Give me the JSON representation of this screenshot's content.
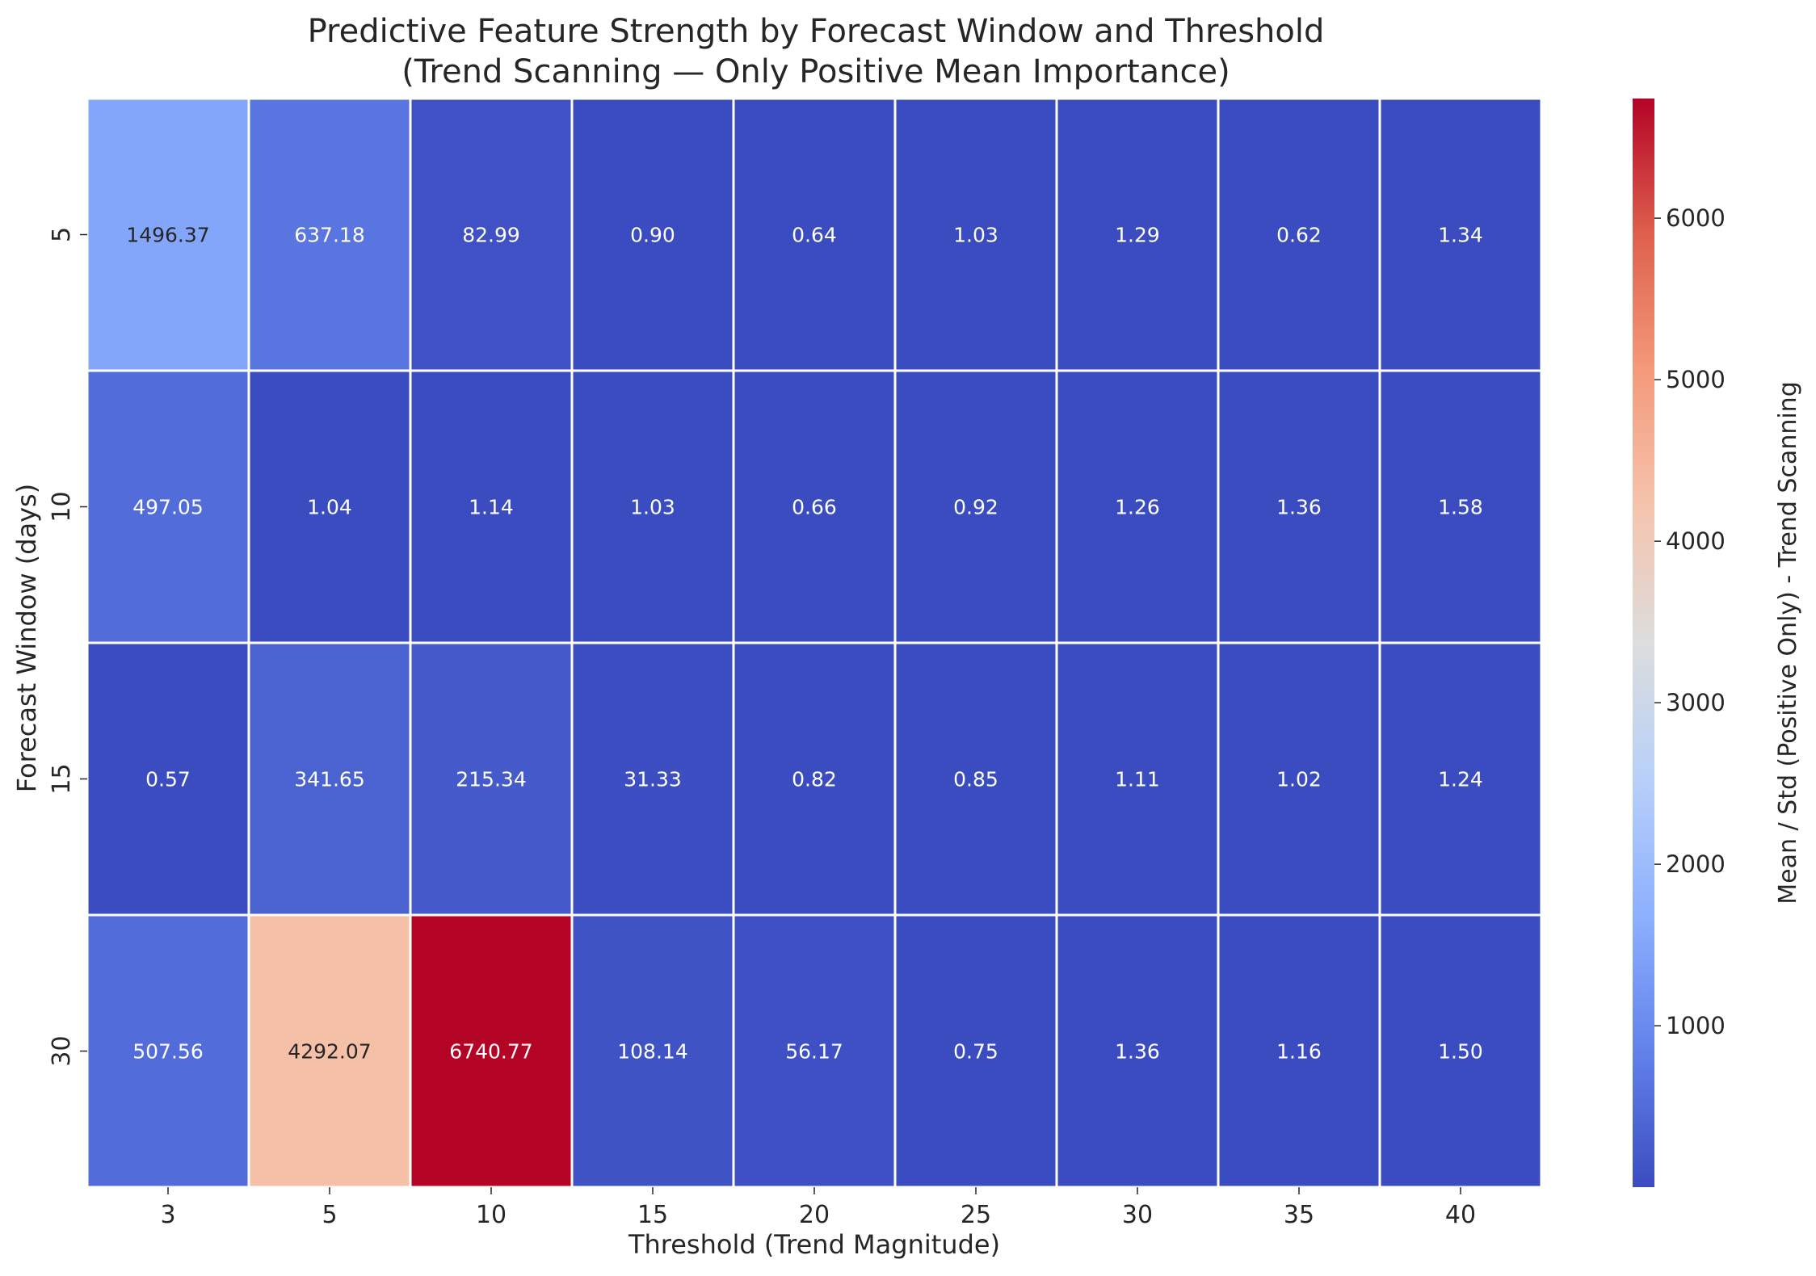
{
  "chart_data": {
    "type": "heatmap",
    "title": "Predictive Feature Strength by Forecast Window and Threshold",
    "subtitle": "(Trend Scanning — Only Positive Mean Importance)",
    "xlabel": "Threshold (Trend Magnitude)",
    "ylabel": "Forecast Window (days)",
    "colorbar_label": "Mean / Std (Positive Only) - Trend Scanning",
    "colormap": "coolwarm",
    "colorbar_range": [
      0.57,
      6740.77
    ],
    "colorbar_ticks": [
      1000,
      2000,
      3000,
      4000,
      5000,
      6000
    ],
    "x_categories": [
      "3",
      "5",
      "10",
      "15",
      "20",
      "25",
      "30",
      "35",
      "40"
    ],
    "y_categories": [
      "5",
      "10",
      "15",
      "30"
    ],
    "values": [
      [
        1496.37,
        637.18,
        82.99,
        0.9,
        0.64,
        1.03,
        1.29,
        0.62,
        1.34
      ],
      [
        497.05,
        1.04,
        1.14,
        1.03,
        0.66,
        0.92,
        1.26,
        1.36,
        1.58
      ],
      [
        0.57,
        341.65,
        215.34,
        31.33,
        0.82,
        0.85,
        1.11,
        1.02,
        1.24
      ],
      [
        507.56,
        4292.07,
        6740.77,
        108.14,
        56.17,
        0.75,
        1.36,
        1.16,
        1.5
      ]
    ],
    "value_labels": [
      [
        "1496.37",
        "637.18",
        "82.99",
        "0.90",
        "0.64",
        "1.03",
        "1.29",
        "0.62",
        "1.34"
      ],
      [
        "497.05",
        "1.04",
        "1.14",
        "1.03",
        "0.66",
        "0.92",
        "1.26",
        "1.36",
        "1.58"
      ],
      [
        "0.57",
        "341.65",
        "215.34",
        "31.33",
        "0.82",
        "0.85",
        "1.11",
        "1.02",
        "1.24"
      ],
      [
        "507.56",
        "4292.07",
        "6740.77",
        "108.14",
        "56.17",
        "0.75",
        "1.36",
        "1.16",
        "1.50"
      ]
    ],
    "grid": false,
    "cell_separator_color": "#ffffff"
  }
}
